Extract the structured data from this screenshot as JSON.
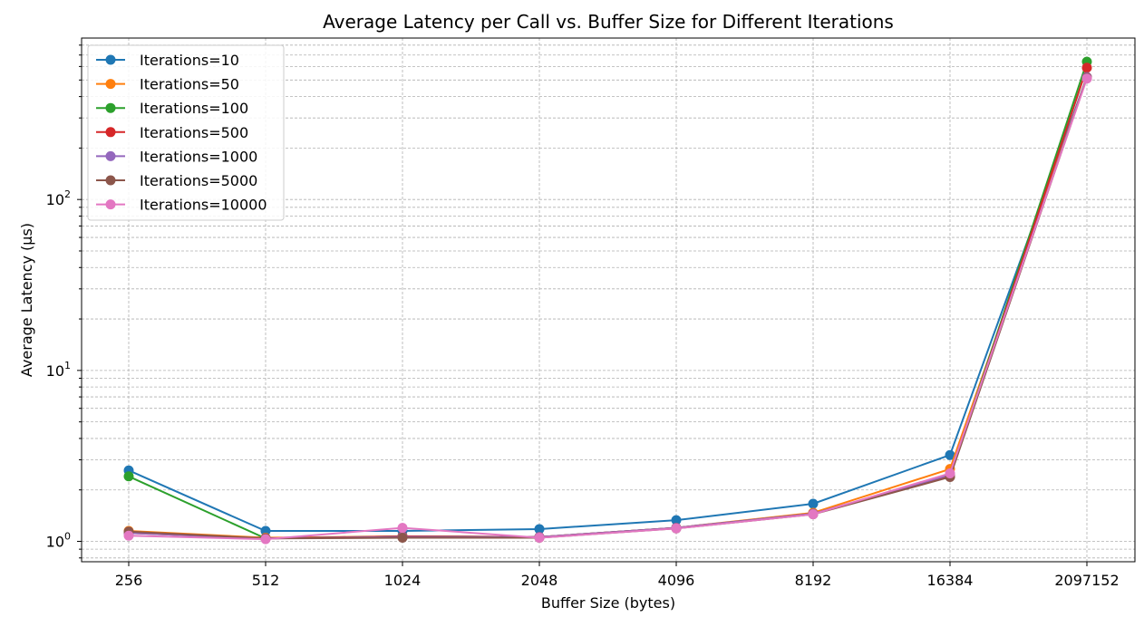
{
  "chart_data": {
    "type": "line",
    "title": "Average Latency per Call vs. Buffer Size for Different Iterations",
    "xlabel": "Buffer Size (bytes)",
    "ylabel": "Average Latency (µs)",
    "categories": [
      "256",
      "512",
      "1024",
      "2048",
      "4096",
      "8192",
      "16384",
      "2097152"
    ],
    "y_scale": "log",
    "ylim": [
      0.76,
      880
    ],
    "y_ticks": [
      {
        "value": 1,
        "base": "10",
        "exp": "0"
      },
      {
        "value": 10,
        "base": "10",
        "exp": "1"
      },
      {
        "value": 100,
        "base": "10",
        "exp": "2"
      }
    ],
    "grid": true,
    "legend_position": "top-left",
    "series": [
      {
        "name": "Iterations=10",
        "color": "#1f77b4",
        "values": [
          2.6,
          1.15,
          1.15,
          1.18,
          1.33,
          1.66,
          3.2,
          520
        ]
      },
      {
        "name": "Iterations=50",
        "color": "#ff7f0e",
        "values": [
          1.15,
          1.05,
          1.07,
          1.06,
          1.2,
          1.47,
          2.65,
          520
        ]
      },
      {
        "name": "Iterations=100",
        "color": "#2ca02c",
        "values": [
          2.4,
          1.04,
          1.07,
          1.06,
          1.2,
          1.45,
          2.4,
          640
        ]
      },
      {
        "name": "Iterations=500",
        "color": "#d62728",
        "values": [
          1.12,
          1.04,
          1.07,
          1.06,
          1.2,
          1.45,
          2.4,
          590
        ]
      },
      {
        "name": "Iterations=1000",
        "color": "#9467bd",
        "values": [
          1.12,
          1.04,
          1.06,
          1.06,
          1.2,
          1.45,
          2.45,
          520
        ]
      },
      {
        "name": "Iterations=5000",
        "color": "#8c564b",
        "values": [
          1.14,
          1.04,
          1.05,
          1.05,
          1.19,
          1.44,
          2.38,
          515
        ]
      },
      {
        "name": "Iterations=10000",
        "color": "#e377c2",
        "values": [
          1.08,
          1.03,
          1.2,
          1.05,
          1.19,
          1.44,
          2.5,
          510
        ]
      }
    ]
  }
}
